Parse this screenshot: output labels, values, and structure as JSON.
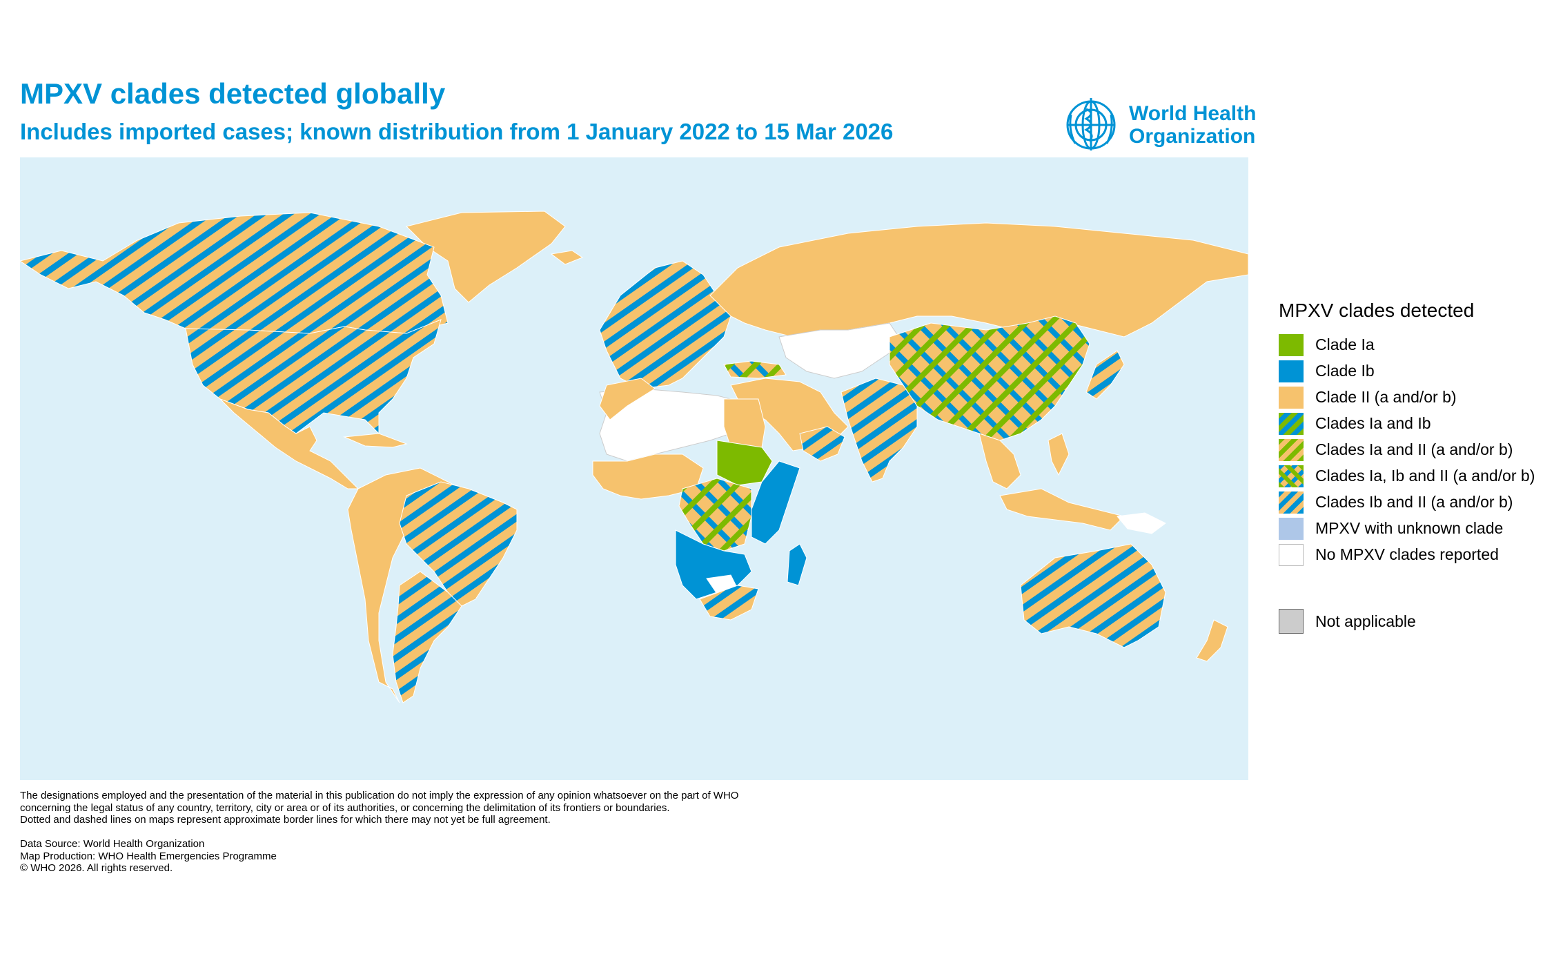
{
  "header": {
    "title": "MPXV clades detected globally",
    "subtitle": "Includes imported cases; known distribution from 1 January 2022 to 15 Mar 2026"
  },
  "logo": {
    "line1": "World Health",
    "line2": "Organization",
    "icon": "who-emblem-icon"
  },
  "legend": {
    "title": "MPXV clades detected",
    "items": [
      {
        "label": "Clade Ia",
        "color": "#7dba00",
        "pattern": "solid"
      },
      {
        "label": "Clade Ib",
        "color": "#0093d5",
        "pattern": "solid"
      },
      {
        "label": "Clade II (a and/or b)",
        "color": "#f6c26d",
        "pattern": "solid"
      },
      {
        "label": "Clades Ia and Ib",
        "colors": [
          "#7dba00",
          "#0093d5"
        ],
        "pattern": "stripes"
      },
      {
        "label": "Clades Ia and II (a and/or b)",
        "colors": [
          "#7dba00",
          "#f6c26d"
        ],
        "pattern": "stripes"
      },
      {
        "label": "Clades Ia, Ib and II (a and/or b)",
        "colors": [
          "#7dba00",
          "#0093d5",
          "#f6c26d"
        ],
        "pattern": "crosshatch"
      },
      {
        "label": "Clades Ib and II (a and/or b)",
        "colors": [
          "#0093d5",
          "#f6c26d"
        ],
        "pattern": "stripes"
      },
      {
        "label": "MPXV with unknown clade",
        "color": "#aec7e8",
        "pattern": "solid"
      },
      {
        "label": "No MPXV clades reported",
        "color": "#ffffff",
        "pattern": "solid"
      }
    ],
    "not_applicable": {
      "label": "Not applicable",
      "color": "#cccccc"
    }
  },
  "map": {
    "ocean_color": "#dcf0f9",
    "regions": [
      {
        "name": "Canada",
        "category": "Clades Ib and II (a and/or b)"
      },
      {
        "name": "United States of America",
        "category": "Clades Ib and II (a and/or b)"
      },
      {
        "name": "Mexico",
        "category": "Clade II (a and/or b)"
      },
      {
        "name": "Brazil",
        "category": "Clades Ib and II (a and/or b)"
      },
      {
        "name": "Argentina",
        "category": "Clades Ib and II (a and/or b)"
      },
      {
        "name": "Russian Federation",
        "category": "Clade II (a and/or b)"
      },
      {
        "name": "China",
        "category": "Clades Ia, Ib and II (a and/or b)"
      },
      {
        "name": "India",
        "category": "Clades Ib and II (a and/or b)"
      },
      {
        "name": "Sudan",
        "category": "Clade Ia"
      },
      {
        "name": "Democratic Republic of the Congo",
        "category": "Clades Ia, Ib and II (a and/or b)"
      },
      {
        "name": "Angola",
        "category": "Clade Ib"
      },
      {
        "name": "Kenya",
        "category": "Clade Ib"
      },
      {
        "name": "South Africa",
        "category": "Clades Ib and II (a and/or b)"
      },
      {
        "name": "Madagascar",
        "category": "Clade Ib"
      },
      {
        "name": "Australia",
        "category": "Clades Ib and II (a and/or b)"
      },
      {
        "name": "Greenland",
        "category": "Clade II (a and/or b)"
      },
      {
        "name": "North Africa",
        "category": "No MPXV clades reported"
      },
      {
        "name": "Indonesia",
        "category": "Clade II (a and/or b)"
      },
      {
        "name": "Japan",
        "category": "Clades Ib and II (a and/or b)"
      },
      {
        "name": "New Zealand",
        "category": "Clade II (a and/or b)"
      }
    ]
  },
  "footer": {
    "disclaimer": [
      "The designations employed and the presentation of the material in this publication do not imply the expression of any opinion whatsoever on the part of WHO",
      "concerning the legal status of any country, territory, city or area or of its authorities, or concerning the delimitation of its frontiers or boundaries.",
      "Dotted and dashed lines on maps represent approximate border lines for which there may not yet be full agreement."
    ],
    "credits": [
      "Data Source: World Health Organization",
      "Map Production: WHO Health Emergencies Programme",
      "© WHO 2026. All rights reserved."
    ]
  }
}
